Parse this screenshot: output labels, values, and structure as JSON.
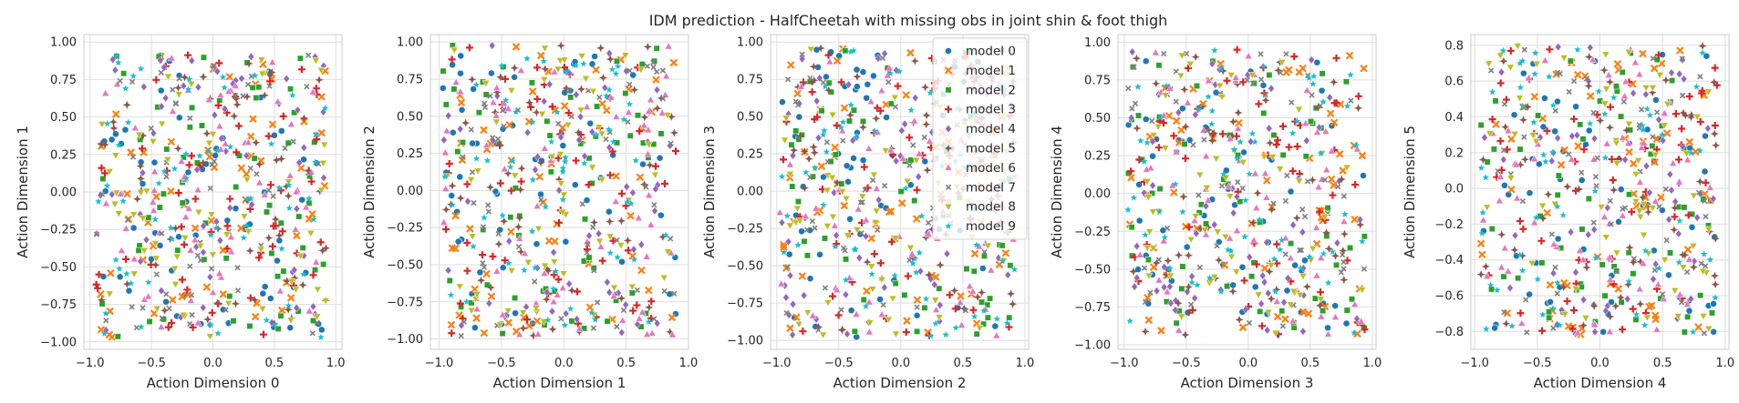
{
  "title": "IDM prediction - HalfCheetah with missing obs in joint shin & foot thigh",
  "legend": {
    "placement": "upper-right of third subplot",
    "entries": [
      {
        "label": "model 0",
        "color": "#1f77b4",
        "marker": "circle"
      },
      {
        "label": "model 1",
        "color": "#ff7f0e",
        "marker": "x"
      },
      {
        "label": "model 2",
        "color": "#2ca02c",
        "marker": "square"
      },
      {
        "label": "model 3",
        "color": "#d62728",
        "marker": "plus"
      },
      {
        "label": "model 4",
        "color": "#9467bd",
        "marker": "diamond"
      },
      {
        "label": "model 5",
        "color": "#8c564b",
        "marker": "star4"
      },
      {
        "label": "model 6",
        "color": "#e377c2",
        "marker": "triangle-up"
      },
      {
        "label": "model 7",
        "color": "#7f7f7f",
        "marker": "small-x"
      },
      {
        "label": "model 8",
        "color": "#bcbd22",
        "marker": "triangle-down"
      },
      {
        "label": "model 9",
        "color": "#17becf",
        "marker": "star"
      }
    ]
  },
  "chart_data": [
    {
      "type": "scatter",
      "xlabel": "Action Dimension 0",
      "ylabel": "Action Dimension 1",
      "xlim": [
        -1.05,
        1.05
      ],
      "ylim": [
        -1.05,
        1.05
      ],
      "xticks": [
        -1.0,
        -0.5,
        0.0,
        0.5,
        1.0
      ],
      "xtick_labels": [
        "−1.0",
        "−0.5",
        "0.0",
        "0.5",
        "1.0"
      ],
      "yticks": [
        -1.0,
        -0.75,
        -0.5,
        -0.25,
        0.0,
        0.25,
        0.5,
        0.75,
        1.0
      ],
      "ytick_labels": [
        "−1.00",
        "−0.75",
        "−0.50",
        "−0.25",
        "0.00",
        "0.25",
        "0.50",
        "0.75",
        "1.00"
      ],
      "grid": true,
      "points_per_series": 60,
      "spread": {
        "x": [
          -0.95,
          0.92
        ],
        "y": [
          -0.97,
          0.92
        ]
      },
      "seed": 11
    },
    {
      "type": "scatter",
      "xlabel": "Action Dimension 1",
      "ylabel": "Action Dimension 2",
      "xlim": [
        -1.07,
        1.0
      ],
      "ylim": [
        -1.07,
        1.05
      ],
      "xticks": [
        -1.0,
        -0.5,
        0.0,
        0.5,
        1.0
      ],
      "xtick_labels": [
        "−1.0",
        "−0.5",
        "0.0",
        "0.5",
        "1.0"
      ],
      "yticks": [
        -1.0,
        -0.75,
        -0.5,
        -0.25,
        0.0,
        0.25,
        0.5,
        0.75,
        1.0
      ],
      "ytick_labels": [
        "−1.00",
        "−0.75",
        "−0.50",
        "−0.25",
        "0.00",
        "0.25",
        "0.50",
        "0.75",
        "1.00"
      ],
      "grid": true,
      "points_per_series": 60,
      "spread": {
        "x": [
          -0.97,
          0.9
        ],
        "y": [
          -0.98,
          0.98
        ]
      },
      "seed": 23
    },
    {
      "type": "scatter",
      "xlabel": "Action Dimension 2",
      "ylabel": "Action Dimension 3",
      "xlim": [
        -1.05,
        1.03
      ],
      "ylim": [
        -1.06,
        1.05
      ],
      "xticks": [
        -1.0,
        -0.5,
        0.0,
        0.5,
        1.0
      ],
      "xtick_labels": [
        "−1.0",
        "−0.5",
        "0.0",
        "0.5",
        "1.0"
      ],
      "yticks": [
        -1.0,
        -0.75,
        -0.5,
        -0.25,
        0.0,
        0.25,
        0.5,
        0.75,
        1.0
      ],
      "ytick_labels": [
        "−1.00",
        "−0.75",
        "−0.50",
        "−0.25",
        "0.00",
        "0.25",
        "0.50",
        "0.75",
        "1.00"
      ],
      "grid": true,
      "points_per_series": 60,
      "spread": {
        "x": [
          -0.98,
          0.92
        ],
        "y": [
          -0.98,
          0.96
        ]
      },
      "seed": 37
    },
    {
      "type": "scatter",
      "xlabel": "Action Dimension 3",
      "ylabel": "Action Dimension 4",
      "xlim": [
        -1.05,
        1.03
      ],
      "ylim": [
        -1.03,
        1.05
      ],
      "xticks": [
        -1.0,
        -0.5,
        0.0,
        0.5,
        1.0
      ],
      "xtick_labels": [
        "−1.0",
        "−0.5",
        "0.0",
        "0.5",
        "1.0"
      ],
      "yticks": [
        -1.0,
        -0.75,
        -0.5,
        -0.25,
        0.0,
        0.25,
        0.5,
        0.75,
        1.0
      ],
      "ytick_labels": [
        "−1.00",
        "−0.75",
        "−0.50",
        "−0.25",
        "0.00",
        "0.25",
        "0.50",
        "0.75",
        "1.00"
      ],
      "grid": true,
      "points_per_series": 60,
      "spread": {
        "x": [
          -0.98,
          0.94
        ],
        "y": [
          -0.95,
          0.95
        ]
      },
      "seed": 53
    },
    {
      "type": "scatter",
      "xlabel": "Action Dimension 4",
      "ylabel": "Action Dimension 5",
      "xlim": [
        -1.03,
        1.03
      ],
      "ylim": [
        -0.9,
        0.86
      ],
      "xticks": [
        -1.0,
        -0.5,
        0.0,
        0.5,
        1.0
      ],
      "xtick_labels": [
        "−1.0",
        "−0.5",
        "0.0",
        "0.5",
        "1.0"
      ],
      "yticks": [
        -0.8,
        -0.6,
        -0.4,
        -0.2,
        0.0,
        0.2,
        0.4,
        0.6,
        0.8
      ],
      "ytick_labels": [
        "−0.8",
        "−0.6",
        "−0.4",
        "−0.2",
        "0.0",
        "0.2",
        "0.4",
        "0.6",
        "0.8"
      ],
      "grid": true,
      "points_per_series": 60,
      "spread": {
        "x": [
          -0.95,
          0.94
        ],
        "y": [
          -0.82,
          0.8
        ]
      },
      "seed": 71
    }
  ]
}
